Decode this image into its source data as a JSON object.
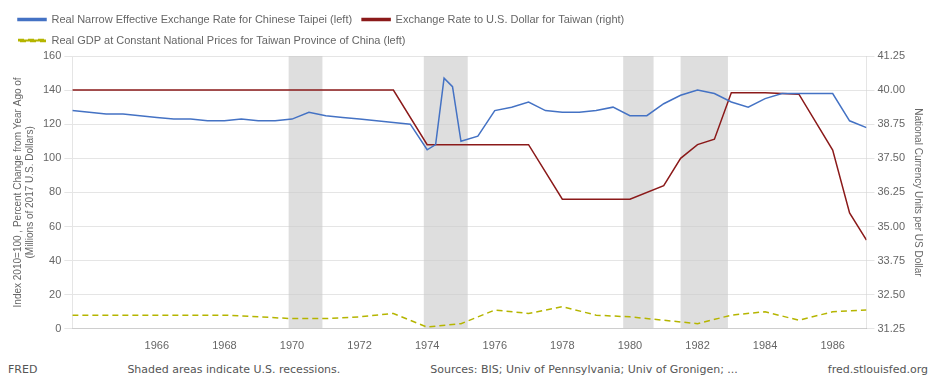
{
  "chart_data": {
    "type": "line",
    "annotations": [
      "FRED",
      "Shaded areas indicate U.S. recessions.",
      "Sources: BIS; Univ of Pennsylvania; Univ of Gronigen; ...",
      "fred.stlouisfed.org"
    ],
    "ylabel": "Index 2010=100 , Percent Change from Year Ago of\n(Millions of 2017 U.S. Dollars)",
    "y2label": "National Currency Units per US Dollar",
    "xlim": [
      1963.5,
      1987.0
    ],
    "xticks": [
      1966,
      1968,
      1970,
      1972,
      1974,
      1976,
      1978,
      1980,
      1982,
      1984,
      1986
    ],
    "ylim": [
      0,
      160
    ],
    "yticks": [
      0,
      20,
      40,
      60,
      80,
      100,
      120,
      140,
      160
    ],
    "y2lim": [
      31.25,
      41.25
    ],
    "y2ticks": [
      31.25,
      {
        "value": 32.5,
        "label": "32.50"
      },
      33.75,
      {
        "value": 35.0,
        "label": "35.00"
      },
      36.25,
      {
        "value": 37.5,
        "label": "37.50"
      },
      38.75,
      {
        "value": 40.0,
        "label": "40.00"
      },
      41.25
    ],
    "grid": true,
    "legend": "top",
    "recession_bands": [
      [
        1969.9,
        1970.9
      ],
      [
        1973.9,
        1975.2
      ],
      [
        1979.8,
        1980.7
      ],
      [
        1981.5,
        1982.9
      ]
    ],
    "series": [
      {
        "name": "Real Narrow Effective Exchange Rate for Chinese Taipei (left)",
        "color": "#4472c4",
        "line_style": "solid",
        "x": [
          1963.5,
          1964,
          1964.5,
          1965,
          1965.5,
          1966,
          1966.5,
          1967,
          1967.5,
          1968,
          1968.5,
          1969,
          1969.5,
          1970,
          1970.5,
          1971,
          1971.5,
          1972,
          1972.5,
          1973,
          1973.5,
          1974,
          1974.25,
          1974.5,
          1974.75,
          1975,
          1975.5,
          1976,
          1976.5,
          1977,
          1977.5,
          1978,
          1978.5,
          1979,
          1979.5,
          1980,
          1980.5,
          1981,
          1981.5,
          1982,
          1982.5,
          1983,
          1983.5,
          1984,
          1984.5,
          1985,
          1985.5,
          1986,
          1986.5,
          1987
        ],
        "values": [
          128,
          127,
          126,
          126,
          125,
          124,
          123,
          123,
          122,
          122,
          123,
          122,
          122,
          123,
          127,
          125,
          124,
          123,
          122,
          121,
          120,
          105,
          108,
          147,
          142,
          110,
          113,
          128,
          130,
          133,
          128,
          127,
          127,
          128,
          130,
          125,
          125,
          132,
          137,
          140,
          138,
          133,
          130,
          135,
          138,
          138,
          138,
          138,
          122,
          118
        ]
      },
      {
        "name": "Exchange Rate to U.S. Dollar for Taiwan (right)",
        "color": "#8b1a1a",
        "line_style": "solid",
        "axis": "y2",
        "x": [
          1963.5,
          1964,
          1965,
          1966,
          1967,
          1968,
          1969,
          1970,
          1971,
          1972,
          1973,
          1974,
          1975,
          1976,
          1977,
          1978,
          1979,
          1980,
          1981,
          1981.5,
          1982,
          1982.5,
          1983,
          1984,
          1985,
          1986,
          1986.5,
          1987
        ],
        "values": [
          40.0,
          40.0,
          40.0,
          40.0,
          40.0,
          40.0,
          40.0,
          40.0,
          40.0,
          40.0,
          40.0,
          38.0,
          38.0,
          38.0,
          38.0,
          36.0,
          36.0,
          36.0,
          36.5,
          37.5,
          38.0,
          38.2,
          39.9,
          39.9,
          39.85,
          37.8,
          35.5,
          34.5
        ]
      },
      {
        "name": "Real GDP at Constant National Prices for Taiwan Province of China (left)",
        "color": "#b5b500",
        "line_style": "dashed",
        "x": [
          1963.5,
          1964,
          1965,
          1966,
          1967,
          1968,
          1969,
          1970,
          1971,
          1972,
          1973,
          1974,
          1975,
          1976,
          1977,
          1978,
          1979,
          1980,
          1981,
          1982,
          1983,
          1984,
          1985,
          1986,
          1987
        ],
        "values": [
          8,
          8,
          8,
          8,
          8,
          8,
          7,
          6,
          6,
          7,
          9,
          1,
          3,
          11,
          9,
          13,
          8,
          7,
          5,
          3,
          8,
          10,
          5,
          10,
          11
        ]
      }
    ]
  }
}
